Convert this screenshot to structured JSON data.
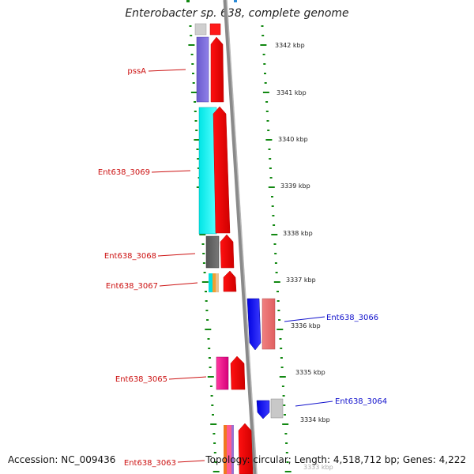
{
  "title": "Enterobacter sp. 638, complete genome",
  "footer": {
    "accession": "Accession: NC_009436",
    "summary": "Topology: circular; Length: 4,518,712 bp; Genes: 4,222"
  },
  "colors": {
    "backbone": "#8a8a8a",
    "tick": "#118811",
    "forward_label": "#cc1111",
    "reverse_label": "#1111cc"
  },
  "kbp_labels": [
    "3342 kbp",
    "3341 kbp",
    "3340 kbp",
    "3339 kbp",
    "3338 kbp",
    "3337 kbp",
    "3336 kbp",
    "3335 kbp",
    "3334 kbp"
  ],
  "partial_label": "3333 kbp",
  "genes": [
    {
      "name": "pssA",
      "strand": "forward",
      "label_color": "#cc1111"
    },
    {
      "name": "Ent638_3069",
      "strand": "forward",
      "label_color": "#cc1111"
    },
    {
      "name": "Ent638_3068",
      "strand": "forward",
      "label_color": "#cc1111"
    },
    {
      "name": "Ent638_3067",
      "strand": "forward",
      "label_color": "#cc1111"
    },
    {
      "name": "Ent638_3066",
      "strand": "reverse",
      "label_color": "#1111cc"
    },
    {
      "name": "Ent638_3065",
      "strand": "forward",
      "label_color": "#cc1111"
    },
    {
      "name": "Ent638_3064",
      "strand": "reverse",
      "label_color": "#1111cc"
    },
    {
      "name": "Ent638_3063",
      "strand": "forward",
      "label_color": "#cc1111"
    }
  ]
}
